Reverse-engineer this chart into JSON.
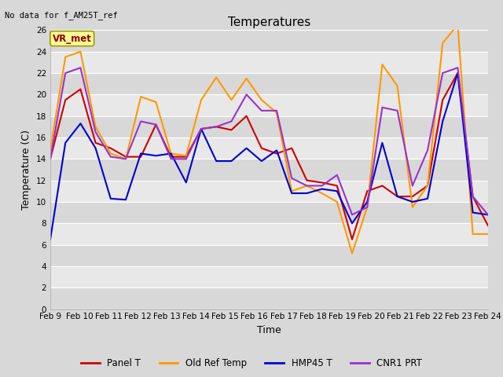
{
  "title": "Temperatures",
  "xlabel": "Time",
  "ylabel": "Temperature (C)",
  "annotation_text": "No data for f_AM25T_ref",
  "vr_met_label": "VR_met",
  "ylim": [
    0,
    26
  ],
  "yticks": [
    0,
    2,
    4,
    6,
    8,
    10,
    12,
    14,
    16,
    18,
    20,
    22,
    24,
    26
  ],
  "x_labels": [
    "Feb 9",
    "Feb 10",
    "Feb 11",
    "Feb 12",
    "Feb 13",
    "Feb 14",
    "Feb 15",
    "Feb 16",
    "Feb 17",
    "Feb 18",
    "Feb 19",
    "Feb 20",
    "Feb 21",
    "Feb 22",
    "Feb 23",
    "Feb 24"
  ],
  "series": {
    "Panel T": {
      "color": "#cc0000",
      "values": [
        14.0,
        19.5,
        20.5,
        15.5,
        15.0,
        14.2,
        14.2,
        17.2,
        14.2,
        14.2,
        16.8,
        17.0,
        16.7,
        18.0,
        15.0,
        14.5,
        15.0,
        12.0,
        11.8,
        11.5,
        6.5,
        11.0,
        11.5,
        10.5,
        10.5,
        11.5,
        19.5,
        22.0,
        10.5,
        7.8
      ]
    },
    "Old Ref Temp": {
      "color": "#ff9900",
      "values": [
        14.8,
        23.5,
        24.0,
        17.0,
        14.5,
        14.0,
        19.8,
        19.3,
        14.5,
        14.3,
        19.5,
        21.6,
        19.5,
        21.5,
        19.5,
        18.3,
        11.0,
        11.5,
        10.8,
        10.0,
        5.2,
        9.5,
        22.8,
        20.8,
        9.5,
        11.5,
        24.8,
        26.5,
        7.0,
        7.0
      ]
    },
    "HMP45 T": {
      "color": "#0000cc",
      "values": [
        6.5,
        15.5,
        17.3,
        15.0,
        10.3,
        10.2,
        14.5,
        14.3,
        14.5,
        11.8,
        16.8,
        13.8,
        13.8,
        15.0,
        13.8,
        14.8,
        10.8,
        10.8,
        11.2,
        11.0,
        8.0,
        10.0,
        15.5,
        10.5,
        10.0,
        10.3,
        17.5,
        22.0,
        9.0,
        8.8
      ]
    },
    "CNR1 PRT": {
      "color": "#9933cc",
      "values": [
        14.0,
        22.0,
        22.5,
        16.5,
        14.2,
        14.0,
        17.5,
        17.2,
        14.0,
        14.0,
        16.8,
        17.0,
        17.5,
        20.0,
        18.5,
        18.5,
        12.2,
        11.5,
        11.5,
        12.5,
        8.8,
        9.5,
        18.8,
        18.5,
        11.5,
        14.8,
        22.0,
        22.5,
        10.5,
        8.8
      ]
    }
  },
  "band_colors": [
    "#d8d8d8",
    "#e8e8e8"
  ],
  "grid_color": "#ffffff",
  "fig_bg": "#d8d8d8",
  "title_fontsize": 11,
  "axis_label_fontsize": 9,
  "tick_fontsize": 7.5,
  "legend_fontsize": 8.5,
  "linewidth": 1.5
}
